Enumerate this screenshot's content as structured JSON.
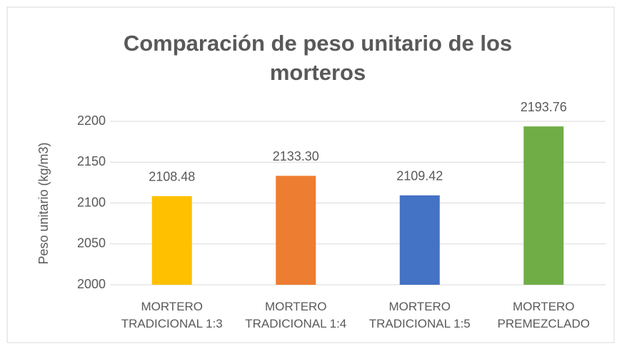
{
  "chart_data": {
    "type": "bar",
    "title": "Comparación de peso unitario de los morteros",
    "y_label": "Peso unitario (kg/m3)",
    "categories": [
      "MORTERO TRADICIONAL 1:3",
      "MORTERO TRADICIONAL 1:4",
      "MORTERO TRADICIONAL 1:5",
      "MORTERO PREMEZCLADO"
    ],
    "values": [
      2108.48,
      2133.3,
      2109.42,
      2193.76
    ],
    "value_labels": [
      "2108.48",
      "2133.30",
      "2109.42",
      "2193.76"
    ],
    "colors": [
      "#ffc000",
      "#ed7d31",
      "#4472c4",
      "#70ad47"
    ],
    "ylim": [
      2000,
      2200
    ],
    "yticks": [
      2000,
      2050,
      2100,
      2150,
      2200
    ],
    "grid": true
  }
}
